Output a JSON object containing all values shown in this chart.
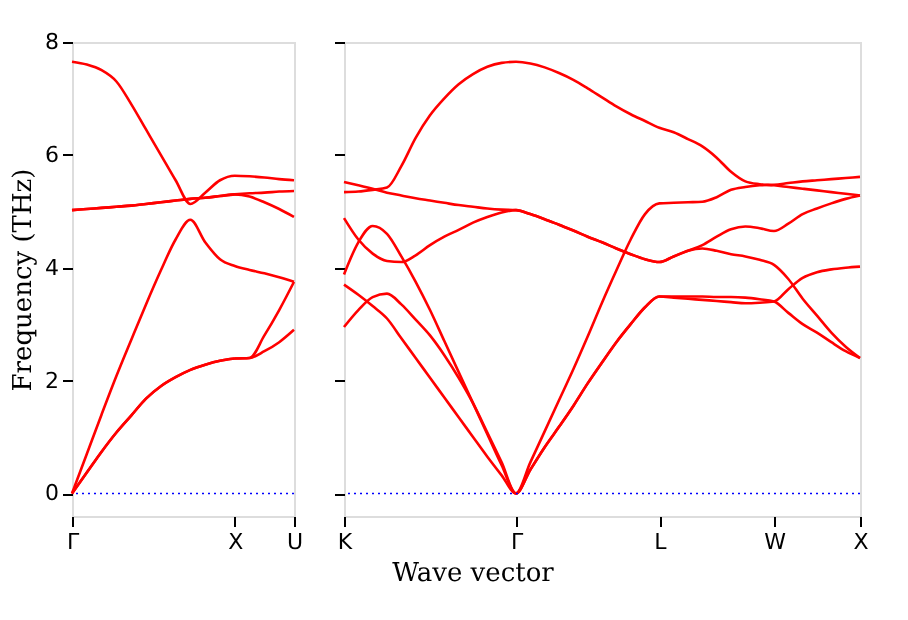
{
  "chart_data": [
    {
      "type": "line",
      "ylabel": "Frequency (THz)",
      "categories": [
        "Γ",
        null,
        null,
        null,
        null,
        null,
        null,
        null,
        null,
        null,
        null,
        "X",
        null,
        null,
        null,
        "U"
      ],
      "ylim": [
        -0.4,
        8
      ],
      "yticks": [
        0,
        2,
        4,
        6,
        8
      ],
      "grid": false,
      "legend": false,
      "marker": "none",
      "line_style": "solid",
      "ref_lines": [
        {
          "axis": "y",
          "value": 0,
          "color": "#0000ff",
          "line_style": "dotted"
        }
      ],
      "series": [
        {
          "color": "#ff0000",
          "values": [
            7.65,
            7.6,
            7.5,
            7.3,
            6.9,
            6.45,
            6.0,
            5.55,
            5.13,
            5.33,
            5.55,
            5.63,
            5.62,
            5.6,
            5.57,
            5.55
          ]
        },
        {
          "color": "#ff0000",
          "values": [
            5.02,
            5.04,
            5.06,
            5.08,
            5.1,
            5.13,
            5.16,
            5.19,
            5.22,
            5.24,
            5.27,
            5.3,
            5.32,
            5.33,
            5.35,
            5.36
          ]
        },
        {
          "color": "#ff0000",
          "values": [
            5.02,
            5.04,
            5.06,
            5.08,
            5.1,
            5.13,
            5.16,
            5.19,
            5.22,
            5.24,
            5.27,
            5.3,
            5.26,
            5.16,
            5.04,
            4.9
          ]
        },
        {
          "color": "#ff0000",
          "values": [
            0,
            0.7,
            1.4,
            2.08,
            2.72,
            3.35,
            3.95,
            4.5,
            4.85,
            4.45,
            4.15,
            4.03,
            3.96,
            3.9,
            3.83,
            3.75
          ]
        },
        {
          "color": "#ff0000",
          "values": [
            0,
            0.37,
            0.74,
            1.08,
            1.38,
            1.68,
            1.9,
            2.06,
            2.19,
            2.28,
            2.35,
            2.39,
            null,
            null,
            null,
            null
          ]
        },
        {
          "color": "#ff0000",
          "values": [
            null,
            null,
            null,
            null,
            null,
            null,
            null,
            null,
            null,
            null,
            null,
            2.39,
            2.4,
            2.8,
            3.25,
            3.75
          ]
        },
        {
          "color": "#ff0000",
          "values": [
            0,
            0.37,
            0.74,
            1.08,
            1.38,
            1.68,
            1.9,
            2.06,
            2.19,
            2.28,
            2.35,
            2.39,
            2.4,
            2.52,
            2.68,
            2.9
          ]
        }
      ]
    },
    {
      "type": "line",
      "xlabel": "Wave vector",
      "categories": [
        "K",
        null,
        null,
        null,
        null,
        null,
        null,
        null,
        null,
        null,
        null,
        null,
        "Γ",
        null,
        null,
        null,
        null,
        null,
        null,
        null,
        null,
        null,
        "L",
        null,
        null,
        null,
        null,
        null,
        null,
        null,
        "W",
        null,
        null,
        null,
        null,
        null,
        "X"
      ],
      "ylim": [
        -0.4,
        8
      ],
      "yticks": [
        0,
        2,
        4,
        6,
        8
      ],
      "tick_labels": "x",
      "grid": false,
      "legend": false,
      "marker": "none",
      "line_style": "solid",
      "ref_lines": [
        {
          "axis": "y",
          "value": 0,
          "color": "#0000ff",
          "line_style": "dotted"
        }
      ],
      "series": [
        {
          "color": "#ff0000",
          "values": [
            5.34,
            5.35,
            5.38,
            5.42,
            5.8,
            6.3,
            6.7,
            7.0,
            7.25,
            7.43,
            7.56,
            7.63,
            7.65,
            7.62,
            7.55,
            7.45,
            7.33,
            7.18,
            7.02,
            6.86,
            6.72,
            6.6,
            6.48,
            6.4,
            6.28,
            6.15,
            5.95,
            5.7,
            5.53,
            5.48,
            5.46,
            5.43,
            5.4,
            5.37,
            5.34,
            5.31,
            5.28
          ]
        },
        {
          "color": "#ff0000",
          "values": [
            5.52,
            5.46,
            5.4,
            5.33,
            5.28,
            5.23,
            5.19,
            5.15,
            5.11,
            5.08,
            5.05,
            5.03,
            5.02,
            4.95,
            4.86,
            4.76,
            4.66,
            4.55,
            4.45,
            4.34,
            4.24,
            4.15,
            4.1,
            4.2,
            4.3,
            4.4,
            4.55,
            4.68,
            4.73,
            4.7,
            4.65,
            4.78,
            4.95,
            5.05,
            5.14,
            5.22,
            5.28
          ]
        },
        {
          "color": "#ff0000",
          "values": [
            4.88,
            4.5,
            4.25,
            4.12,
            4.1,
            4.22,
            4.4,
            4.55,
            4.67,
            4.8,
            4.9,
            4.98,
            5.02,
            4.95,
            4.86,
            4.76,
            4.66,
            4.55,
            4.45,
            4.34,
            4.24,
            4.15,
            4.1,
            4.2,
            4.3,
            4.34,
            4.3,
            4.24,
            4.2,
            4.14,
            4.05,
            3.8,
            3.45,
            3.15,
            2.85,
            2.6,
            2.4
          ]
        },
        {
          "color": "#ff0000",
          "values": [
            3.88,
            4.45,
            4.74,
            4.6,
            4.2,
            3.75,
            3.25,
            2.7,
            2.15,
            1.6,
            1.05,
            0.5,
            0,
            0.55,
            1.1,
            1.65,
            2.2,
            2.78,
            3.38,
            3.95,
            4.5,
            4.95,
            5.14,
            5.15,
            5.16,
            5.17,
            5.25,
            5.38,
            5.43,
            5.46,
            5.47,
            5.5,
            5.53,
            5.55,
            5.57,
            5.59,
            5.61
          ]
        },
        {
          "color": "#ff0000",
          "values": [
            3.7,
            3.52,
            3.32,
            3.1,
            2.75,
            2.4,
            2.05,
            1.7,
            1.35,
            1.0,
            0.65,
            0.32,
            0,
            0.42,
            0.82,
            1.18,
            1.55,
            1.95,
            2.32,
            2.68,
            3.0,
            3.3,
            3.49,
            3.47,
            3.45,
            3.43,
            3.41,
            3.39,
            3.37,
            3.38,
            3.4,
            3.62,
            3.82,
            3.92,
            3.97,
            4.0,
            4.02
          ]
        },
        {
          "color": "#ff0000",
          "values": [
            2.95,
            3.25,
            3.48,
            3.54,
            3.35,
            3.08,
            2.8,
            2.45,
            2.05,
            1.6,
            1.08,
            0.55,
            0,
            0.42,
            0.82,
            1.18,
            1.55,
            1.95,
            2.32,
            2.68,
            3.0,
            3.3,
            3.49,
            3.49,
            3.49,
            3.49,
            3.48,
            3.48,
            3.47,
            3.44,
            3.4,
            3.2,
            3.0,
            2.85,
            2.68,
            2.52,
            2.4
          ]
        }
      ]
    }
  ]
}
